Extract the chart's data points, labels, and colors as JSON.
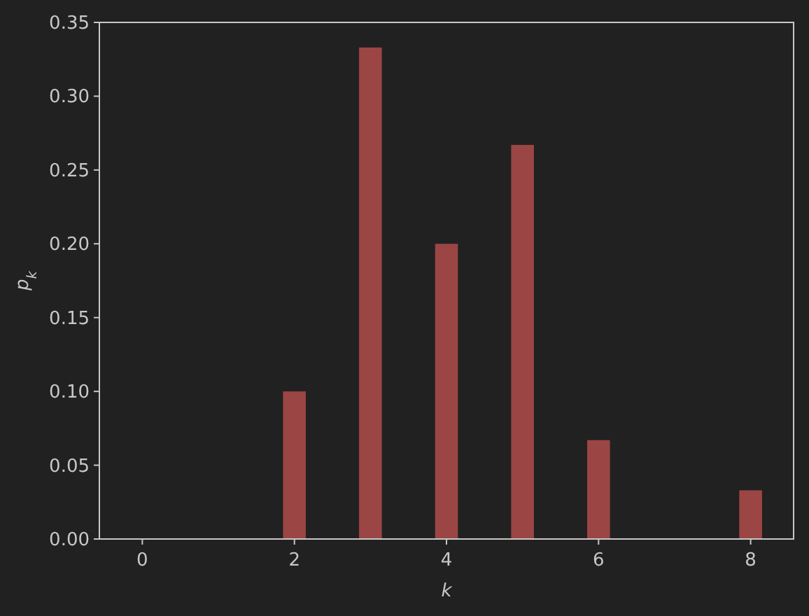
{
  "chart_data": {
    "type": "bar",
    "xlabel": "k",
    "ylabel": "p$_{k}$",
    "x": [
      2,
      3,
      4,
      5,
      6,
      8
    ],
    "values": [
      0.1,
      0.333,
      0.2,
      0.267,
      0.067,
      0.033
    ],
    "color": "#9b4545",
    "xlim": [
      -0.565,
      8.565
    ],
    "xticks": [
      0,
      2,
      4,
      6,
      8
    ],
    "ylim": [
      0,
      0.35
    ],
    "yticks": [
      {
        "value": 0,
        "label": "0.00"
      },
      {
        "value": 0.05,
        "label": "0.05"
      },
      {
        "value": 0.1,
        "label": "0.10"
      },
      {
        "value": 0.15,
        "label": "0.15"
      },
      {
        "value": 0.2,
        "label": "0.20"
      },
      {
        "value": 0.25,
        "label": "0.25"
      },
      {
        "value": 0.3,
        "label": "0.30"
      },
      {
        "value": 0.35,
        "label": "0.35"
      }
    ],
    "grid": false
  }
}
